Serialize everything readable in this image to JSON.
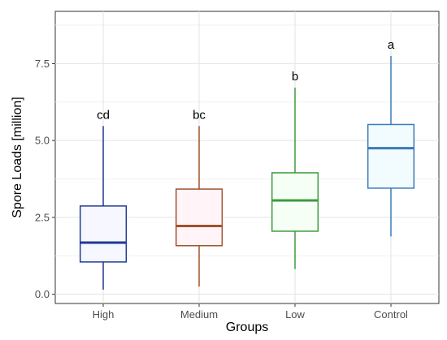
{
  "chart_data": {
    "type": "boxplot",
    "xlabel": "Groups",
    "ylabel": "Spore Loads [million]",
    "ylim": [
      -0.3,
      9.2
    ],
    "yticks": [
      0.0,
      2.5,
      5.0,
      7.5
    ],
    "ytick_labels": [
      "0.0",
      "2.5",
      "5.0",
      "7.5"
    ],
    "grid": true,
    "categories": [
      "High",
      "Medium",
      "Low",
      "Control"
    ],
    "boxes": [
      {
        "category": "High",
        "min": 0.15,
        "q1": 1.05,
        "median": 1.68,
        "q3": 2.87,
        "max": 5.47,
        "label": "cd",
        "color": "#1f3a93",
        "fill": "#f6f7ff"
      },
      {
        "category": "Medium",
        "min": 0.25,
        "q1": 1.58,
        "median": 2.22,
        "q3": 3.42,
        "max": 5.47,
        "label": "bc",
        "color": "#a0522d",
        "fill": "#fff4f8"
      },
      {
        "category": "Low",
        "min": 0.82,
        "q1": 2.05,
        "median": 3.05,
        "q3": 3.95,
        "max": 6.72,
        "label": "b",
        "color": "#3e9a3e",
        "fill": "#f5fff6"
      },
      {
        "category": "Control",
        "min": 1.88,
        "q1": 3.45,
        "median": 4.75,
        "q3": 5.52,
        "max": 7.75,
        "label": "a",
        "color": "#3a7ab8",
        "fill": "#f2fcfe"
      }
    ]
  }
}
